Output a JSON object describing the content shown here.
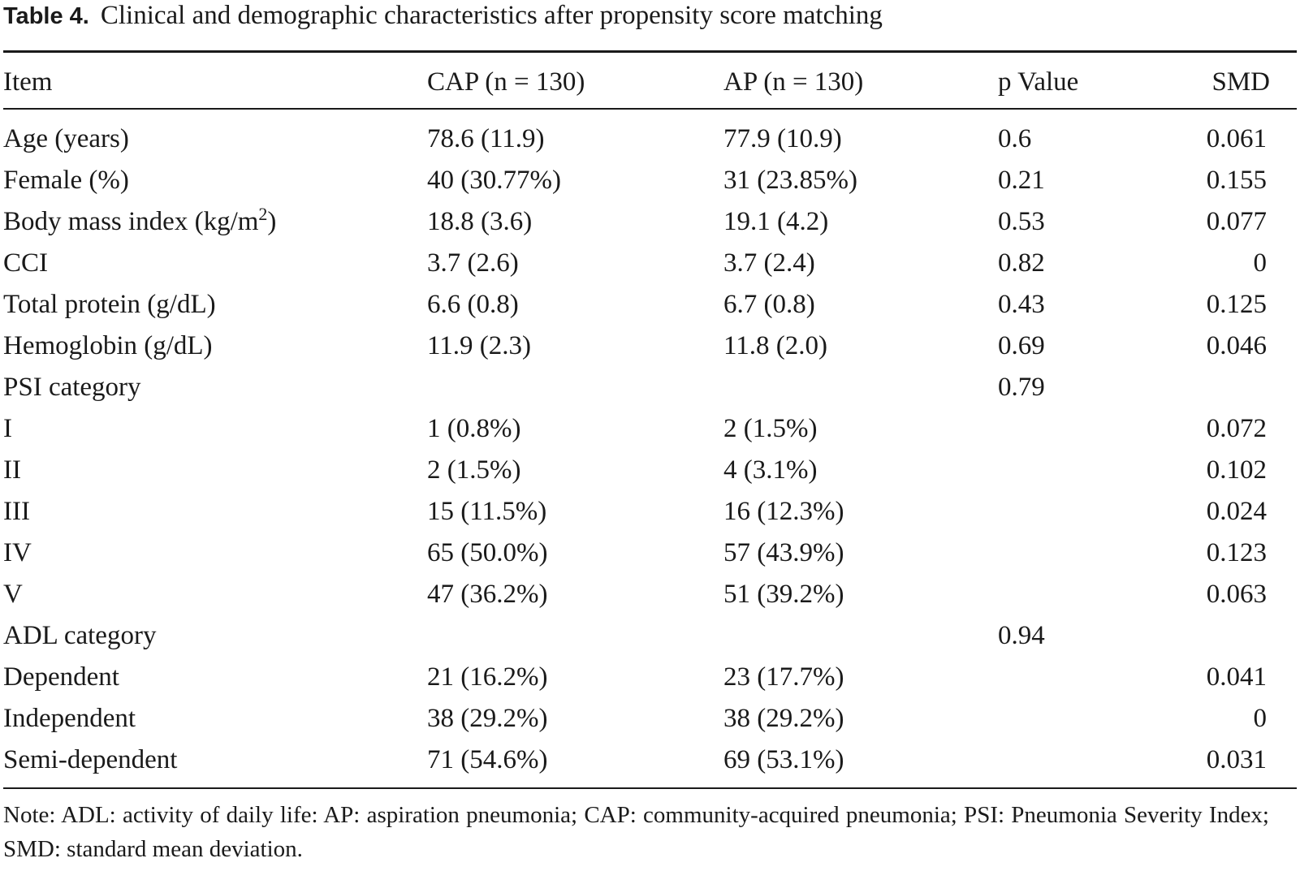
{
  "caption": {
    "label": "Table 4.",
    "text": "Clinical and demographic characteristics after propensity score matching"
  },
  "table": {
    "headers": {
      "item": "Item",
      "cap": "CAP (n = 130)",
      "ap": "AP (n = 130)",
      "p": "p Value",
      "smd": "SMD"
    },
    "rows": [
      {
        "item": "Age (years)",
        "cap": "78.6 (11.9)",
        "ap": "77.9 (10.9)",
        "p": "0.6",
        "smd": "0.061"
      },
      {
        "item": "Female (%)",
        "cap": "40 (30.77%)",
        "ap": "31 (23.85%)",
        "p": "0.21",
        "smd": "0.155"
      },
      {
        "item": "Body mass index (kg/m",
        "item_sup": "2",
        "item_suffix": ")",
        "cap": "18.8 (3.6)",
        "ap": "19.1 (4.2)",
        "p": "0.53",
        "smd": "0.077"
      },
      {
        "item": "CCI",
        "cap": "3.7 (2.6)",
        "ap": "3.7 (2.4)",
        "p": "0.82",
        "smd": "0"
      },
      {
        "item": "Total protein (g/dL)",
        "cap": "6.6 (0.8)",
        "ap": "6.7 (0.8)",
        "p": "0.43",
        "smd": "0.125"
      },
      {
        "item": "Hemoglobin (g/dL)",
        "cap": "11.9 (2.3)",
        "ap": "11.8 (2.0)",
        "p": "0.69",
        "smd": "0.046"
      },
      {
        "item": "PSI category",
        "cap": "",
        "ap": "",
        "p": "0.79",
        "smd": ""
      },
      {
        "item": "I",
        "cap": "1 (0.8%)",
        "ap": "2 (1.5%)",
        "p": "",
        "smd": "0.072"
      },
      {
        "item": "II",
        "cap": "2 (1.5%)",
        "ap": "4 (3.1%)",
        "p": "",
        "smd": "0.102"
      },
      {
        "item": "III",
        "cap": "15 (11.5%)",
        "ap": "16 (12.3%)",
        "p": "",
        "smd": "0.024"
      },
      {
        "item": "IV",
        "cap": "65 (50.0%)",
        "ap": "57 (43.9%)",
        "p": "",
        "smd": "0.123"
      },
      {
        "item": "V",
        "cap": "47 (36.2%)",
        "ap": "51 (39.2%)",
        "p": "",
        "smd": "0.063"
      },
      {
        "item": "ADL category",
        "cap": "",
        "ap": "",
        "p": "0.94",
        "smd": ""
      },
      {
        "item": "Dependent",
        "cap": "21 (16.2%)",
        "ap": "23 (17.7%)",
        "p": "",
        "smd": "0.041"
      },
      {
        "item": "Independent",
        "cap": "38 (29.2%)",
        "ap": "38 (29.2%)",
        "p": "",
        "smd": "0"
      },
      {
        "item": "Semi-dependent",
        "cap": "71 (54.6%)",
        "ap": "69 (53.1%)",
        "p": "",
        "smd": "0.031"
      }
    ]
  },
  "note": "Note: ADL: activity of daily life: AP: aspiration pneumonia; CAP: community-acquired pneumonia; PSI: Pneumonia Severity Index; SMD: standard mean deviation."
}
